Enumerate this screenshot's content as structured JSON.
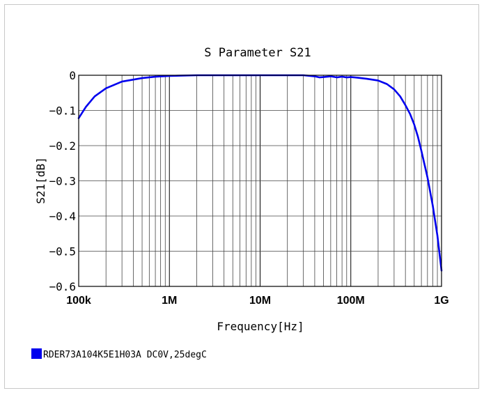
{
  "chart_data": {
    "type": "line",
    "title": "S Parameter S21",
    "xlabel": "Frequency[Hz]",
    "ylabel": "S21[dB]",
    "x_scale": "log",
    "xlim": [
      100000,
      1000000000
    ],
    "ylim": [
      -0.6,
      0
    ],
    "x_ticks": [
      {
        "value": 100000,
        "label": "100k"
      },
      {
        "value": 1000000,
        "label": "1M"
      },
      {
        "value": 10000000,
        "label": "10M"
      },
      {
        "value": 100000000,
        "label": "100M"
      },
      {
        "value": 1000000000,
        "label": "1G"
      }
    ],
    "y_ticks": [
      {
        "value": 0,
        "label": "0"
      },
      {
        "value": -0.1,
        "label": "−0.1"
      },
      {
        "value": -0.2,
        "label": "−0.2"
      },
      {
        "value": -0.3,
        "label": "−0.3"
      },
      {
        "value": -0.4,
        "label": "−0.4"
      },
      {
        "value": -0.5,
        "label": "−0.5"
      },
      {
        "value": -0.6,
        "label": "−0.6"
      }
    ],
    "grid": true,
    "legend_position": "bottom-left",
    "series": [
      {
        "name": "RDER73A104K5E1H03A DC0V,25degC",
        "color": "#0000ee",
        "points": [
          {
            "x": 100000,
            "y": -0.122
          },
          {
            "x": 120000,
            "y": -0.09
          },
          {
            "x": 150000,
            "y": -0.06
          },
          {
            "x": 200000,
            "y": -0.037
          },
          {
            "x": 300000,
            "y": -0.018
          },
          {
            "x": 500000,
            "y": -0.008
          },
          {
            "x": 700000,
            "y": -0.004
          },
          {
            "x": 1000000,
            "y": -0.002
          },
          {
            "x": 2000000,
            "y": 0
          },
          {
            "x": 10000000,
            "y": 0
          },
          {
            "x": 30000000,
            "y": 0
          },
          {
            "x": 40000000,
            "y": -0.003
          },
          {
            "x": 45000000,
            "y": -0.006
          },
          {
            "x": 50000000,
            "y": -0.005
          },
          {
            "x": 60000000,
            "y": -0.003
          },
          {
            "x": 70000000,
            "y": -0.006
          },
          {
            "x": 80000000,
            "y": -0.004
          },
          {
            "x": 90000000,
            "y": -0.006
          },
          {
            "x": 100000000,
            "y": -0.005
          },
          {
            "x": 120000000,
            "y": -0.007
          },
          {
            "x": 150000000,
            "y": -0.01
          },
          {
            "x": 200000000,
            "y": -0.015
          },
          {
            "x": 250000000,
            "y": -0.025
          },
          {
            "x": 300000000,
            "y": -0.04
          },
          {
            "x": 350000000,
            "y": -0.06
          },
          {
            "x": 400000000,
            "y": -0.085
          },
          {
            "x": 450000000,
            "y": -0.11
          },
          {
            "x": 500000000,
            "y": -0.14
          },
          {
            "x": 550000000,
            "y": -0.175
          },
          {
            "x": 600000000,
            "y": -0.215
          },
          {
            "x": 700000000,
            "y": -0.29
          },
          {
            "x": 800000000,
            "y": -0.37
          },
          {
            "x": 900000000,
            "y": -0.455
          },
          {
            "x": 1000000000,
            "y": -0.555
          }
        ]
      }
    ]
  }
}
